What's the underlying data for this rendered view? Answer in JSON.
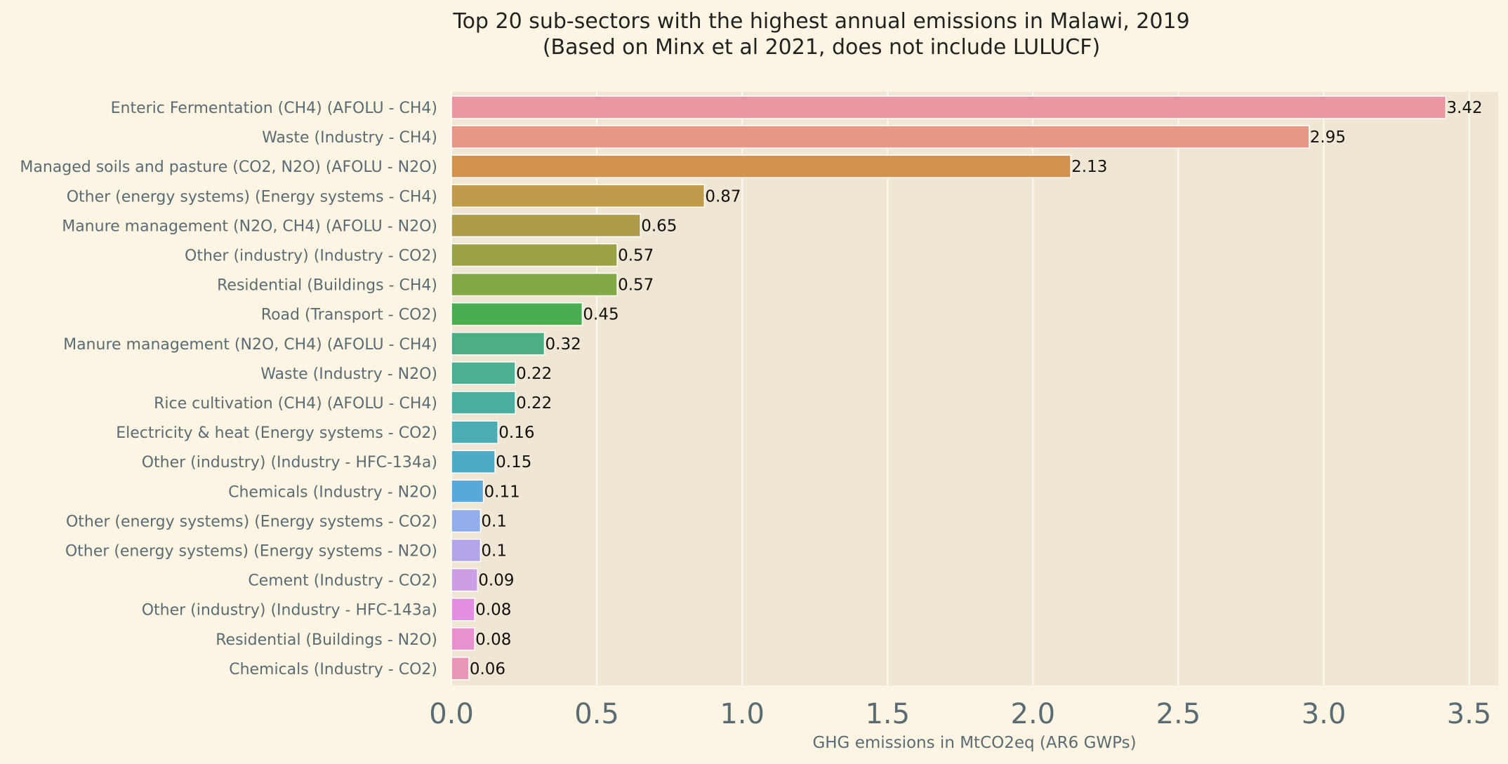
{
  "chart_data": {
    "type": "bar",
    "orientation": "horizontal",
    "title": "Top 20 sub-sectors with the highest annual emissions in Malawi, 2019",
    "subtitle": "(Based on Minx et al 2021, does not include LULUCF)",
    "xlabel": "GHG emissions in MtCO2eq (AR6 GWPs)",
    "ylabel": "",
    "xlim": [
      0,
      3.6
    ],
    "xticks": [
      "0.0",
      "0.5",
      "1.0",
      "1.5",
      "2.0",
      "2.5",
      "3.0",
      "3.5"
    ],
    "grid": "vertical",
    "categories": [
      "Enteric Fermentation (CH4) (AFOLU - CH4)",
      "Waste (Industry - CH4)",
      "Managed soils and pasture (CO2, N2O) (AFOLU - N2O)",
      "Other (energy systems) (Energy systems - CH4)",
      "Manure management (N2O, CH4) (AFOLU - N2O)",
      "Other (industry) (Industry - CO2)",
      "Residential (Buildings - CH4)",
      "Road (Transport - CO2)",
      "Manure management (N2O, CH4) (AFOLU - CH4)",
      "Waste (Industry - N2O)",
      "Rice cultivation (CH4) (AFOLU - CH4)",
      "Electricity & heat (Energy systems - CO2)",
      "Other (industry) (Industry - HFC-134a)",
      "Chemicals (Industry - N2O)",
      "Other (energy systems) (Energy systems - CO2)",
      "Other (energy systems) (Energy systems - N2O)",
      "Cement (Industry - CO2)",
      "Other (industry) (Industry - HFC-143a)",
      "Residential (Buildings - N2O)",
      "Chemicals (Industry - CO2)"
    ],
    "values": [
      3.42,
      2.95,
      2.13,
      0.87,
      0.65,
      0.57,
      0.57,
      0.45,
      0.32,
      0.22,
      0.22,
      0.16,
      0.15,
      0.11,
      0.1,
      0.1,
      0.09,
      0.08,
      0.08,
      0.06
    ],
    "value_labels": [
      "3.42",
      "2.95",
      "2.13",
      "0.87",
      "0.65",
      "0.57",
      "0.57",
      "0.45",
      "0.32",
      "0.22",
      "0.22",
      "0.16",
      "0.15",
      "0.11",
      "0.1",
      "0.1",
      "0.09",
      "0.08",
      "0.08",
      "0.06"
    ],
    "colors": [
      "#ea96a0",
      "#e79785",
      "#d39150",
      "#bf9a4a",
      "#ae9c4b",
      "#9aa245",
      "#83a946",
      "#4aad4f",
      "#4bae84",
      "#4bb091",
      "#4aafa0",
      "#4aadb3",
      "#4eabc8",
      "#58a8dc",
      "#92aeea",
      "#b4a5ea",
      "#cc9ee6",
      "#e28fe2",
      "#e891cd",
      "#e996b8"
    ]
  },
  "theme": {
    "background": "#fdf5e3",
    "plot_background": "#efe6d3",
    "grid_color": "#fdfaf2"
  }
}
